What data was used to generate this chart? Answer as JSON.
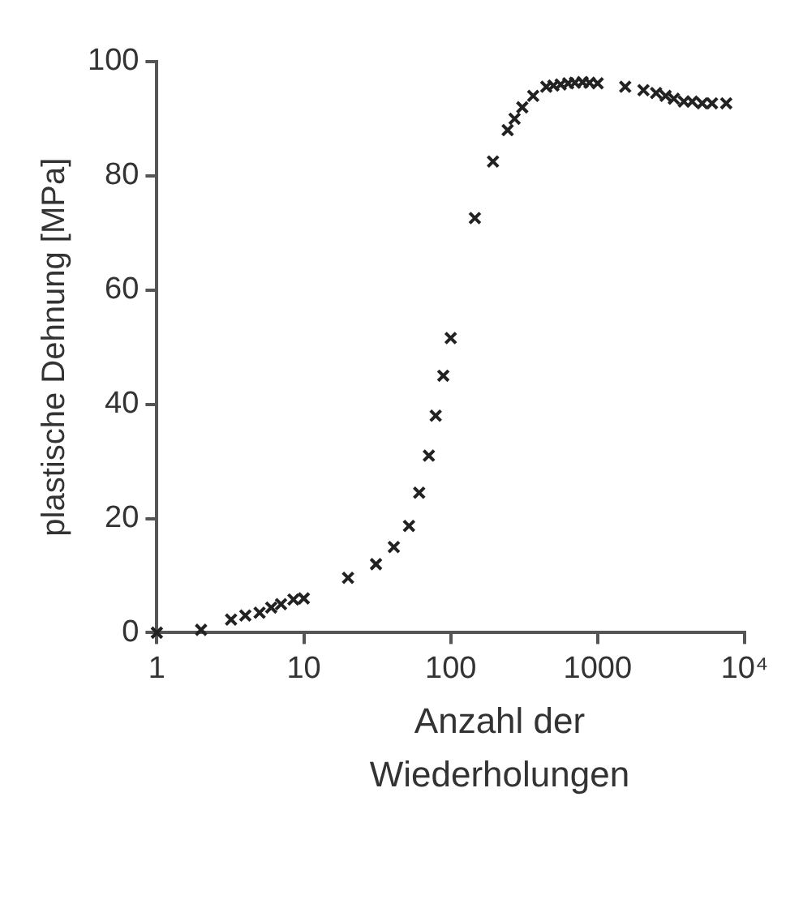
{
  "chart_data": {
    "type": "scatter",
    "xlabel": "Anzahl der Wiederholungen",
    "ylabel": "plastische Dehnung [MPa]",
    "log": "x",
    "grid": false,
    "legend": false,
    "marker": "cross",
    "xlim": [
      1,
      10000
    ],
    "xticks": [
      1,
      10,
      100,
      1000,
      {
        "value": 10000,
        "label": "10⁴"
      }
    ],
    "ylim": [
      0,
      100
    ],
    "yticks": [
      0,
      20,
      40,
      60,
      80,
      100
    ],
    "series": [
      {
        "color": "#222222",
        "x": [
          1,
          2,
          3.2,
          4,
          5,
          6,
          7,
          8.5,
          10,
          20,
          31,
          41,
          52,
          61,
          71,
          79,
          89,
          100,
          146,
          194,
          244,
          272,
          307,
          364,
          447,
          500,
          560,
          630,
          700,
          790,
          880,
          1000,
          1540,
          2050,
          2500,
          2900,
          3300,
          3860,
          4400,
          5150,
          6000,
          7500
        ],
        "values": [
          0,
          0.5,
          2.3,
          3,
          3.5,
          4.4,
          5,
          5.8,
          6,
          9.6,
          12,
          15,
          18.7,
          24.5,
          31,
          38,
          45,
          51.6,
          72.6,
          82.5,
          88,
          90,
          92,
          94,
          95.6,
          95.8,
          96,
          96.2,
          96.3,
          96.4,
          96.3,
          96.2,
          95.6,
          95,
          94.5,
          94,
          93.5,
          93,
          93,
          92.7,
          92.7,
          92.7
        ]
      }
    ]
  }
}
